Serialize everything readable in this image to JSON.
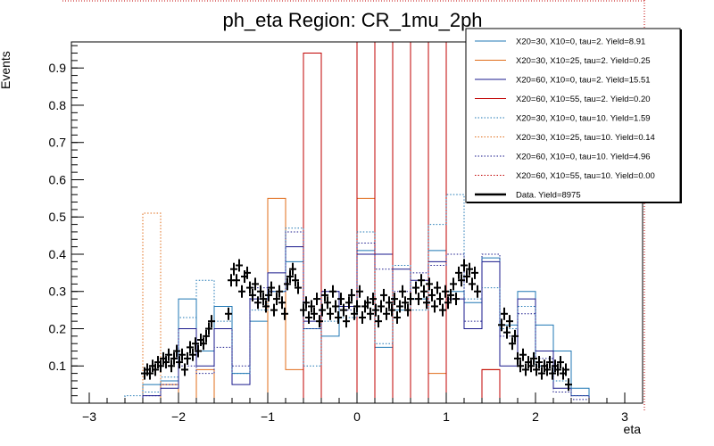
{
  "chart_data": {
    "type": "histogram",
    "title": "ph_eta Region: CR_1mu_2ph",
    "xlabel": "eta",
    "ylabel": "Events",
    "xlim": [
      -3.2,
      3.2
    ],
    "ylim": [
      0,
      0.97
    ],
    "x_ticks": [
      -3,
      -2,
      -1,
      0,
      1,
      2,
      3
    ],
    "y_ticks": [
      0.1,
      0.2,
      0.3,
      0.4,
      0.5,
      0.6,
      0.7,
      0.8,
      0.9
    ],
    "bin_edges": [
      -2.6,
      -2.4,
      -2.2,
      -2.0,
      -1.8,
      -1.6,
      -1.4,
      -1.2,
      -1.0,
      -0.8,
      -0.6,
      -0.4,
      -0.2,
      0.0,
      0.2,
      0.4,
      0.6,
      0.8,
      1.0,
      1.2,
      1.4,
      1.6,
      1.8,
      2.0,
      2.2,
      2.4,
      2.6
    ],
    "series": [
      {
        "name": "X20=30, X10=0, tau=2. Yield=8.91",
        "color": "#1f77b4",
        "style": "solid",
        "values": [
          0,
          0.05,
          0.06,
          0.28,
          0.14,
          0.26,
          0.08,
          0.22,
          0.3,
          0.38,
          0.2,
          0.18,
          0.26,
          0.41,
          0.15,
          0.25,
          0.28,
          0.41,
          0.3,
          0.27,
          0.39,
          0.21,
          0.3,
          0.21,
          0.14,
          0.04
        ]
      },
      {
        "name": "X20=30, X10=25, tau=2. Yield=0.25",
        "color": "#e06c1a",
        "style": "solid",
        "values": [
          0,
          0,
          0.05,
          0,
          0.09,
          0,
          0,
          0,
          0.55,
          0.09,
          0.94,
          0,
          0,
          0.55,
          0,
          0,
          0,
          0.08,
          0,
          0,
          0.09,
          0,
          0,
          0,
          0,
          0
        ]
      },
      {
        "name": "X20=60, X10=0, tau=2. Yield=15.51",
        "color": "#1a1a8c",
        "style": "solid",
        "values": [
          0,
          0.02,
          0.04,
          0.2,
          0.1,
          0.2,
          0.05,
          0.28,
          0.35,
          0.42,
          0.22,
          0.3,
          0.26,
          0.4,
          0.4,
          0.36,
          0.33,
          0.38,
          0.28,
          0.2,
          0.38,
          0.1,
          0.28,
          0.14,
          0.04,
          0.02
        ]
      },
      {
        "name": "X20=60, X10=55, tau=2. Yield=0.20",
        "color": "#c00000",
        "style": "solid",
        "values": [
          0,
          0,
          0,
          0,
          0,
          0,
          0,
          0,
          0,
          0,
          0.94,
          0,
          0,
          0.97,
          0,
          0.97,
          0,
          0.97,
          0,
          0,
          0.09,
          0,
          0,
          0,
          0,
          0
        ]
      },
      {
        "name": "X20=30, X10=0, tau=10. Yield=1.59",
        "color": "#1f77b4",
        "style": "dotted",
        "values": [
          0.02,
          0.03,
          0.07,
          0.23,
          0.33,
          0.22,
          0.08,
          0.25,
          0.3,
          0.47,
          0.1,
          0.22,
          0.23,
          0.46,
          0.16,
          0.37,
          0.25,
          0.48,
          0.56,
          0.28,
          0.31,
          0.2,
          0.26,
          0.1,
          0.06,
          0.02
        ]
      },
      {
        "name": "X20=30, X10=25, tau=10. Yield=0.14",
        "color": "#e06c1a",
        "style": "dotted",
        "values": [
          0,
          0.51,
          0,
          0,
          0,
          0,
          0,
          0,
          0,
          0,
          0,
          0,
          0,
          0,
          0,
          0,
          0,
          0,
          0,
          0,
          0,
          0,
          0,
          0,
          0,
          0
        ]
      },
      {
        "name": "X20=60, X10=0, tau=10. Yield=4.96",
        "color": "#1a1a8c",
        "style": "dotted",
        "values": [
          0,
          0.02,
          0.05,
          0.1,
          0.08,
          0.15,
          0.1,
          0.31,
          0.3,
          0.46,
          0.2,
          0.3,
          0.25,
          0.43,
          0.36,
          0.3,
          0.35,
          0.37,
          0.4,
          0.22,
          0.4,
          0.18,
          0.24,
          0.12,
          0.03,
          0.01
        ]
      },
      {
        "name": "X20=60, X10=55, tau=10. Yield=0.00",
        "color": "#c00000",
        "style": "dotted",
        "values": [
          0,
          0,
          0,
          0,
          0,
          0,
          0,
          0,
          0,
          0,
          0,
          0,
          0,
          0,
          0,
          0,
          0,
          0,
          0,
          0,
          0,
          0,
          0,
          0,
          0,
          0
        ]
      }
    ],
    "data": {
      "name": "Data. Yield=8975",
      "color": "#000000",
      "points": [
        [
          -2.38,
          0.08
        ],
        [
          -2.35,
          0.09
        ],
        [
          -2.32,
          0.08
        ],
        [
          -2.29,
          0.1
        ],
        [
          -2.26,
          0.09
        ],
        [
          -2.23,
          0.11
        ],
        [
          -2.2,
          0.1
        ],
        [
          -2.17,
          0.12
        ],
        [
          -2.14,
          0.11
        ],
        [
          -2.11,
          0.13
        ],
        [
          -2.08,
          0.1
        ],
        [
          -2.05,
          0.12
        ],
        [
          -2.02,
          0.14
        ],
        [
          -1.99,
          0.11
        ],
        [
          -1.96,
          0.13
        ],
        [
          -1.93,
          0.09
        ],
        [
          -1.9,
          0.12
        ],
        [
          -1.87,
          0.15
        ],
        [
          -1.84,
          0.13
        ],
        [
          -1.81,
          0.16
        ],
        [
          -1.78,
          0.14
        ],
        [
          -1.75,
          0.17
        ],
        [
          -1.72,
          0.16
        ],
        [
          -1.69,
          0.18
        ],
        [
          -1.66,
          0.2
        ],
        [
          -1.63,
          0.22
        ],
        [
          -1.44,
          0.24
        ],
        [
          -1.41,
          0.33
        ],
        [
          -1.38,
          0.36
        ],
        [
          -1.35,
          0.33
        ],
        [
          -1.32,
          0.37
        ],
        [
          -1.29,
          0.3
        ],
        [
          -1.26,
          0.34
        ],
        [
          -1.23,
          0.35
        ],
        [
          -1.2,
          0.31
        ],
        [
          -1.17,
          0.29
        ],
        [
          -1.14,
          0.32
        ],
        [
          -1.11,
          0.27
        ],
        [
          -1.08,
          0.3
        ],
        [
          -1.05,
          0.28
        ],
        [
          -1.02,
          0.26
        ],
        [
          -0.99,
          0.29
        ],
        [
          -0.96,
          0.31
        ],
        [
          -0.93,
          0.25
        ],
        [
          -0.9,
          0.28
        ],
        [
          -0.87,
          0.3
        ],
        [
          -0.84,
          0.27
        ],
        [
          -0.81,
          0.24
        ],
        [
          -0.78,
          0.32
        ],
        [
          -0.75,
          0.34
        ],
        [
          -0.72,
          0.36
        ],
        [
          -0.69,
          0.33
        ],
        [
          -0.66,
          0.31
        ],
        [
          -0.6,
          0.25
        ],
        [
          -0.57,
          0.27
        ],
        [
          -0.54,
          0.23
        ],
        [
          -0.51,
          0.26
        ],
        [
          -0.48,
          0.24
        ],
        [
          -0.45,
          0.28
        ],
        [
          -0.42,
          0.22
        ],
        [
          -0.39,
          0.25
        ],
        [
          -0.36,
          0.29
        ],
        [
          -0.33,
          0.27
        ],
        [
          -0.3,
          0.24
        ],
        [
          -0.27,
          0.3
        ],
        [
          -0.24,
          0.26
        ],
        [
          -0.21,
          0.23
        ],
        [
          -0.18,
          0.28
        ],
        [
          -0.15,
          0.25
        ],
        [
          -0.12,
          0.22
        ],
        [
          -0.09,
          0.27
        ],
        [
          -0.06,
          0.29
        ],
        [
          -0.03,
          0.24
        ],
        [
          0.0,
          0.26
        ],
        [
          0.03,
          0.3
        ],
        [
          0.06,
          0.23
        ],
        [
          0.09,
          0.26
        ],
        [
          0.12,
          0.27
        ],
        [
          0.15,
          0.24
        ],
        [
          0.18,
          0.28
        ],
        [
          0.21,
          0.25
        ],
        [
          0.24,
          0.22
        ],
        [
          0.27,
          0.26
        ],
        [
          0.3,
          0.29
        ],
        [
          0.33,
          0.24
        ],
        [
          0.36,
          0.27
        ],
        [
          0.39,
          0.25
        ],
        [
          0.42,
          0.28
        ],
        [
          0.45,
          0.23
        ],
        [
          0.48,
          0.26
        ],
        [
          0.51,
          0.3
        ],
        [
          0.54,
          0.27
        ],
        [
          0.57,
          0.25
        ],
        [
          0.6,
          0.28
        ],
        [
          0.66,
          0.31
        ],
        [
          0.69,
          0.28
        ],
        [
          0.72,
          0.33
        ],
        [
          0.75,
          0.3
        ],
        [
          0.78,
          0.27
        ],
        [
          0.81,
          0.32
        ],
        [
          0.84,
          0.29
        ],
        [
          0.87,
          0.26
        ],
        [
          0.9,
          0.31
        ],
        [
          0.93,
          0.28
        ],
        [
          0.96,
          0.25
        ],
        [
          0.99,
          0.3
        ],
        [
          1.02,
          0.27
        ],
        [
          1.05,
          0.29
        ],
        [
          1.08,
          0.32
        ],
        [
          1.11,
          0.28
        ],
        [
          1.14,
          0.35
        ],
        [
          1.17,
          0.33
        ],
        [
          1.2,
          0.37
        ],
        [
          1.23,
          0.34
        ],
        [
          1.26,
          0.36
        ],
        [
          1.29,
          0.32
        ],
        [
          1.32,
          0.35
        ],
        [
          1.35,
          0.3
        ],
        [
          1.62,
          0.21
        ],
        [
          1.65,
          0.24
        ],
        [
          1.68,
          0.19
        ],
        [
          1.71,
          0.22
        ],
        [
          1.74,
          0.16
        ],
        [
          1.77,
          0.18
        ],
        [
          1.8,
          0.12
        ],
        [
          1.83,
          0.1
        ],
        [
          1.86,
          0.13
        ],
        [
          1.89,
          0.09
        ],
        [
          1.92,
          0.11
        ],
        [
          1.95,
          0.1
        ],
        [
          1.98,
          0.12
        ],
        [
          2.01,
          0.09
        ],
        [
          2.04,
          0.11
        ],
        [
          2.07,
          0.08
        ],
        [
          2.1,
          0.1
        ],
        [
          2.13,
          0.09
        ],
        [
          2.16,
          0.11
        ],
        [
          2.19,
          0.08
        ],
        [
          2.22,
          0.1
        ],
        [
          2.25,
          0.09
        ],
        [
          2.28,
          0.11
        ],
        [
          2.31,
          0.08
        ],
        [
          2.34,
          0.09
        ],
        [
          2.37,
          0.05
        ]
      ]
    },
    "legend": "top-right",
    "grid": false
  }
}
